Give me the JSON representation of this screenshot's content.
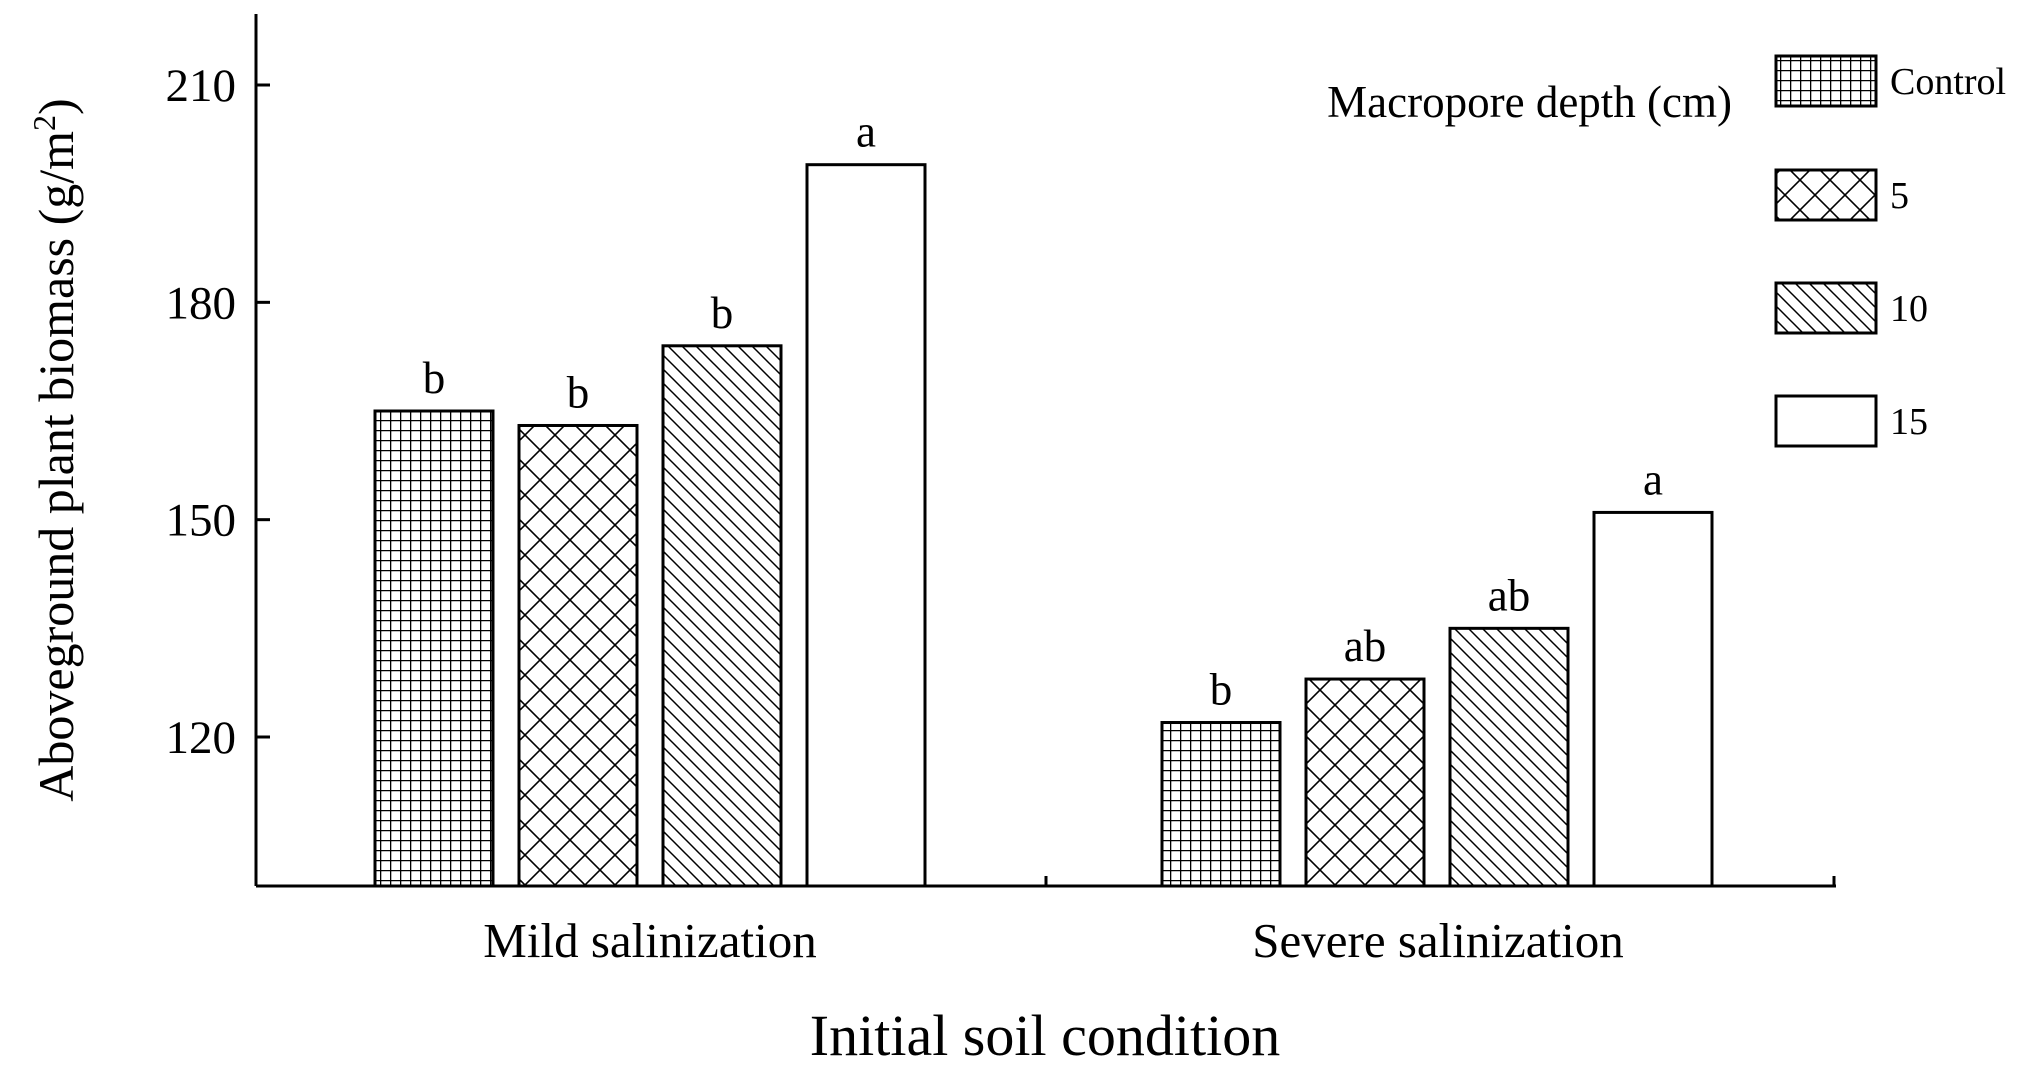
{
  "chart_data": {
    "type": "bar",
    "xlabel": "Initial soil condition",
    "ylabel_main": "Aboveground plant biomass (g/m",
    "ylabel_sup": "2",
    "ylabel_close": ")",
    "ylim": [
      100,
      220
    ],
    "yticks": [
      120,
      150,
      180,
      210
    ],
    "categories": [
      "Mild salinization",
      "Severe salinization"
    ],
    "legend_title": "Macropore depth (cm)",
    "legend_position": "top-right",
    "series": [
      {
        "name": "Control",
        "pattern": "grid",
        "values": [
          165,
          122
        ],
        "labels": [
          "b",
          "b"
        ]
      },
      {
        "name": "5",
        "pattern": "crosshatch",
        "values": [
          163,
          128
        ],
        "labels": [
          "b",
          "ab"
        ]
      },
      {
        "name": "10",
        "pattern": "diagonal",
        "values": [
          174,
          135
        ],
        "labels": [
          "b",
          "ab"
        ]
      },
      {
        "name": "15",
        "pattern": "none",
        "values": [
          199,
          151
        ],
        "labels": [
          "a",
          "a"
        ]
      }
    ]
  }
}
